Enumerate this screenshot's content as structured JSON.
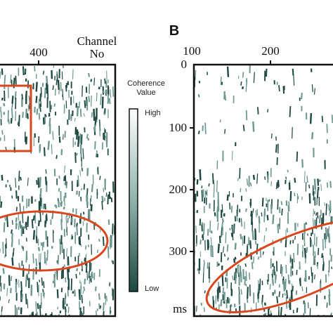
{
  "panel_a": {
    "x_axis_title": [
      "Channel",
      "No"
    ],
    "x_ticks": [
      "400"
    ]
  },
  "colorbar": {
    "title": [
      "Coherence",
      "Value"
    ],
    "high": "High",
    "low": "Low"
  },
  "panel_b": {
    "label": "B",
    "x_ticks": [
      "100",
      "200"
    ],
    "y_ticks": [
      "0",
      "100",
      "200",
      "300"
    ],
    "y_unit": "ms"
  }
}
